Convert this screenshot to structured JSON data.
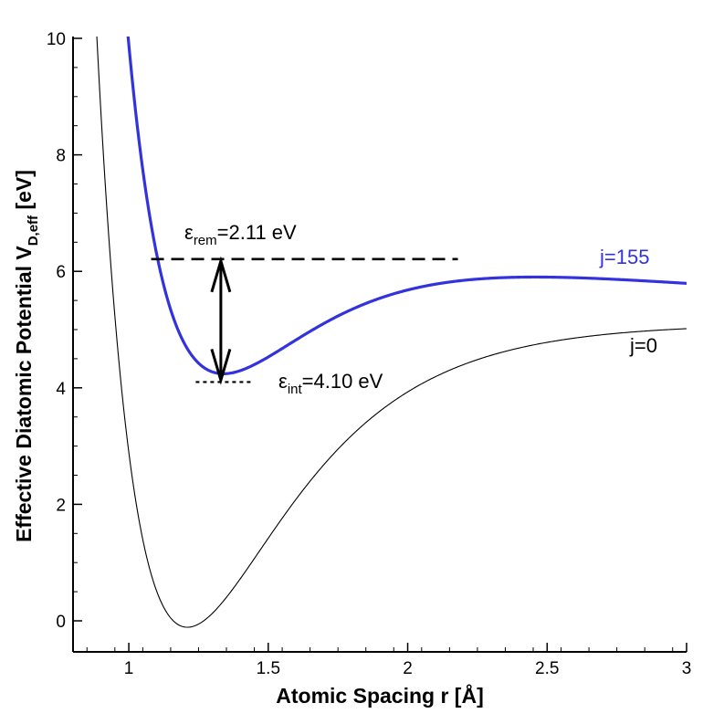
{
  "chart_data": {
    "type": "line",
    "title": "",
    "xlabel": "Atomic Spacing r [Å]",
    "ylabel": {
      "main": "Effective Diatomic Potential V",
      "subscript": "D,eff",
      "unit": " [eV]"
    },
    "xlim": [
      0.8,
      3.0
    ],
    "ylim": [
      -0.55,
      10.0
    ],
    "x_ticks": [
      {
        "value": 1.0,
        "label": "1"
      },
      {
        "value": 1.5,
        "label": "1.5"
      },
      {
        "value": 2.0,
        "label": "2"
      },
      {
        "value": 2.5,
        "label": "2.5"
      },
      {
        "value": 3.0,
        "label": "3"
      }
    ],
    "y_ticks": [
      {
        "value": 0,
        "label": "0"
      },
      {
        "value": 2,
        "label": "2"
      },
      {
        "value": 4,
        "label": "4"
      },
      {
        "value": 6,
        "label": "6"
      },
      {
        "value": 8,
        "label": "8"
      },
      {
        "value": 10,
        "label": "10"
      }
    ],
    "grid": false,
    "series": [
      {
        "name": "j=0",
        "label": "j=0",
        "color": "#000000",
        "model": "morse",
        "params": {
          "De": 5.21,
          "re": 1.21,
          "a": 2.69,
          "offset": -0.11
        },
        "x_range": [
          0.85,
          3.0
        ]
      },
      {
        "name": "j=155",
        "label": "j=155",
        "color": "#3333dd",
        "model": "morse_plus_centrifugal",
        "params": {
          "De": 5.21,
          "re": 1.21,
          "a": 2.69,
          "offset": -0.11,
          "C": 7.0
        },
        "x_range": [
          0.95,
          3.0
        ]
      }
    ],
    "annotations": {
      "eps_rem": {
        "symbol": "ε",
        "sub": "rem",
        "text": "=2.11 eV",
        "y": 6.21,
        "x_from": 1.08,
        "x_to": 2.18
      },
      "eps_int": {
        "symbol": "ε",
        "sub": "int",
        "text": "=4.10 eV",
        "y": 4.1,
        "x_from": 1.24,
        "x_to": 1.44
      },
      "arrow": {
        "x": 1.33,
        "y_top": 6.21,
        "y_bottom": 4.1
      }
    }
  }
}
